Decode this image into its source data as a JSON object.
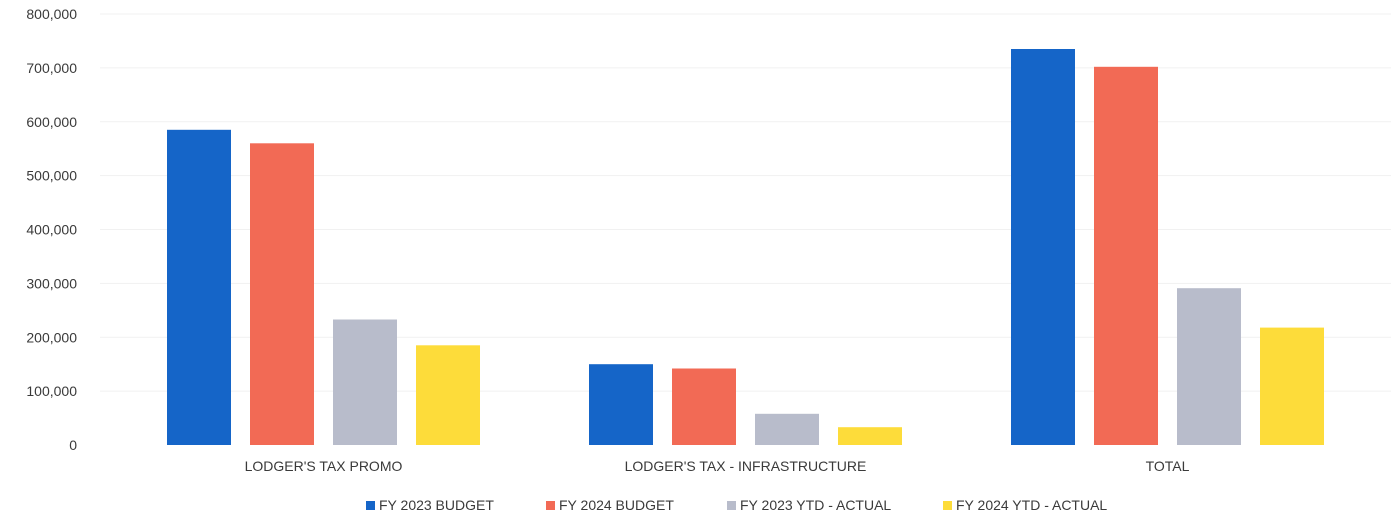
{
  "chart_data": {
    "type": "bar",
    "title": "",
    "xlabel": "",
    "ylabel": "",
    "ylim": [
      0,
      800000
    ],
    "yticks": [
      0,
      100000,
      200000,
      300000,
      400000,
      500000,
      600000,
      700000,
      800000
    ],
    "ytick_labels": [
      "0",
      "100,000",
      "200,000",
      "300,000",
      "400,000",
      "500,000",
      "600,000",
      "700,000",
      "800,000"
    ],
    "categories": [
      "LODGER'S TAX PROMO",
      "LODGER'S TAX - INFRASTRUCTURE",
      "TOTAL"
    ],
    "series": [
      {
        "name": "FY 2023  BUDGET",
        "color": "#1565c8",
        "values": [
          585000,
          150000,
          735000
        ]
      },
      {
        "name": "FY 2024  BUDGET",
        "color": "#f26a55",
        "values": [
          560000,
          142000,
          702000
        ]
      },
      {
        "name": "FY 2023 YTD - ACTUAL",
        "color": "#b8bccb",
        "values": [
          233000,
          58000,
          291000
        ]
      },
      {
        "name": "FY 2024 YTD - ACTUAL",
        "color": "#fddc3a",
        "values": [
          185000,
          33000,
          218000
        ]
      }
    ],
    "grid": true,
    "legend_position": "bottom"
  }
}
